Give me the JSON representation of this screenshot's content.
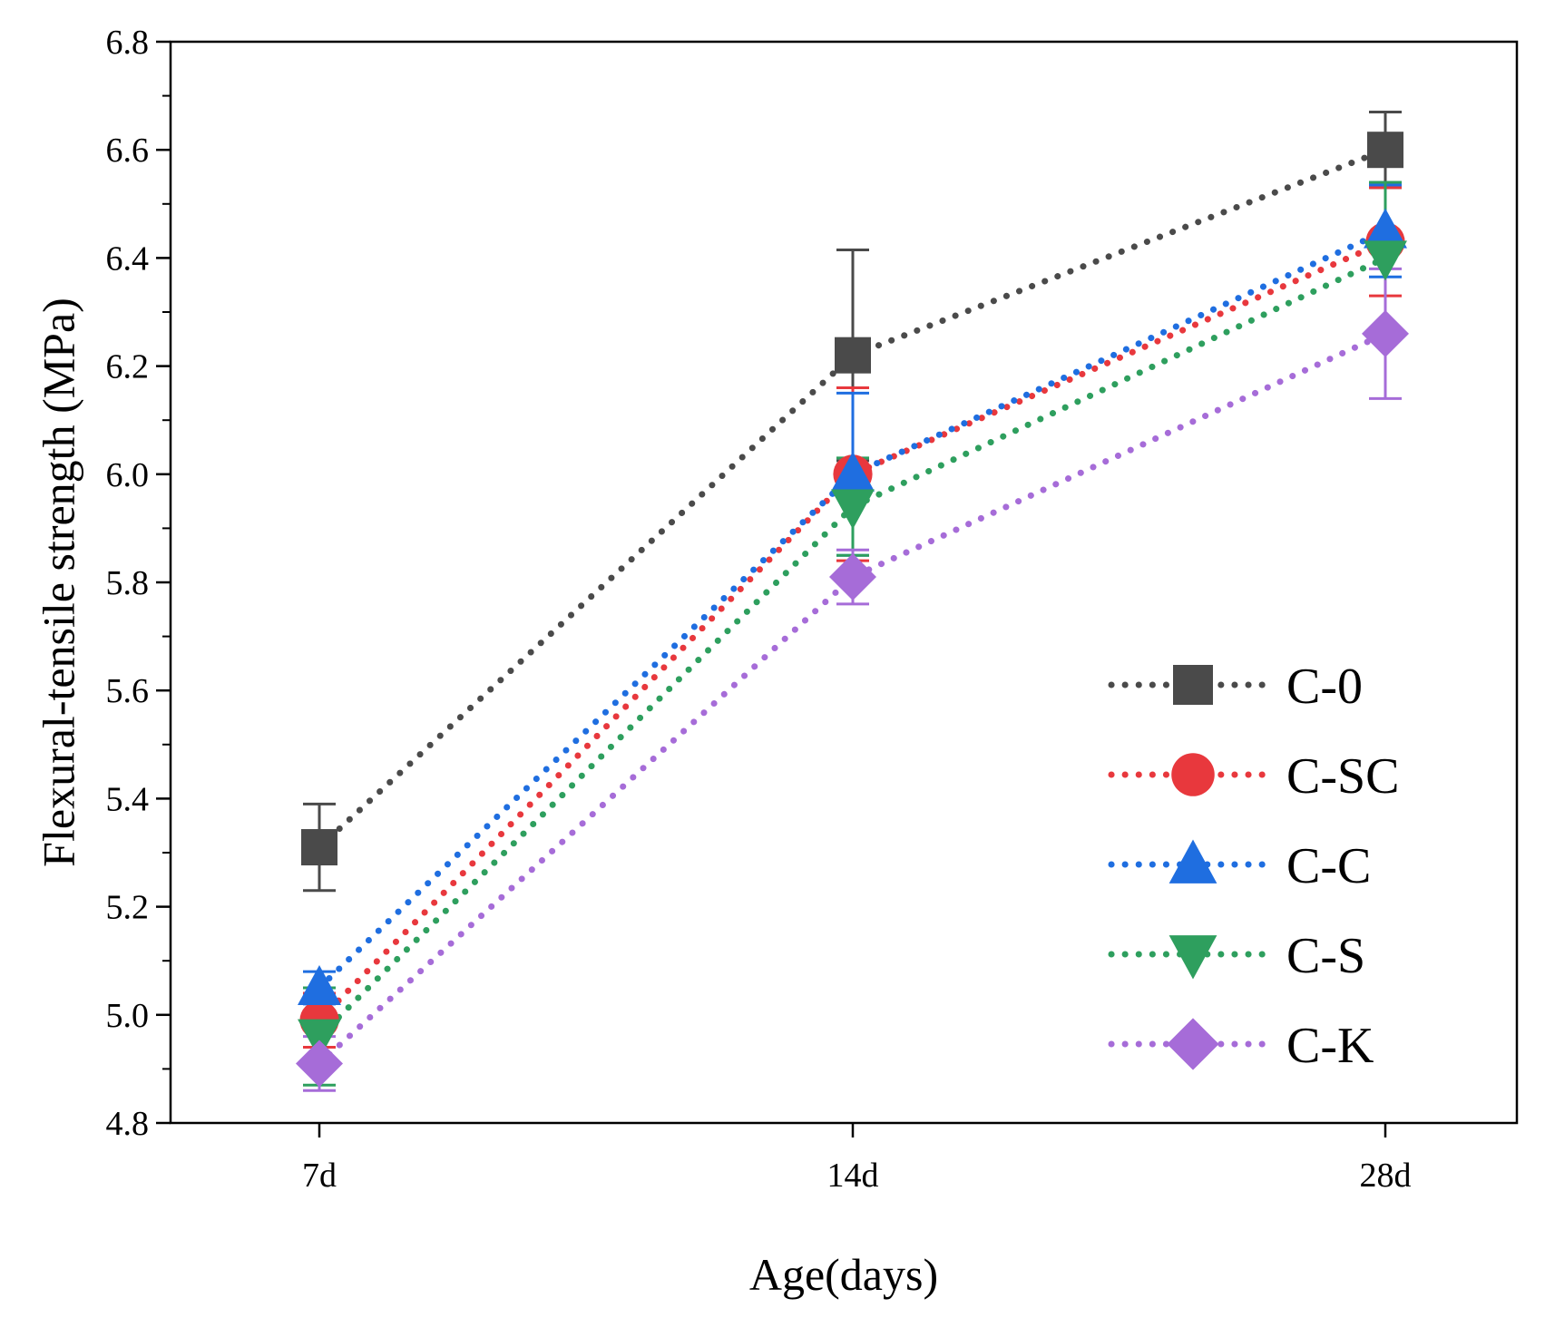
{
  "chart_data": {
    "type": "line",
    "title": "",
    "xlabel": "Age(days)",
    "ylabel": "Flexural-tensile strength (MPa)",
    "categories": [
      "7d",
      "14d",
      "28d"
    ],
    "ylim": [
      4.8,
      6.8
    ],
    "yticks": [
      "4.8",
      "5.0",
      "5.2",
      "5.4",
      "5.6",
      "5.8",
      "6.0",
      "6.2",
      "6.4",
      "6.6",
      "6.8"
    ],
    "grid": false,
    "legend_position": "bottom-right",
    "line_style": "dotted",
    "series": [
      {
        "name": "C-0",
        "marker": "square",
        "color": "#4a4a4a",
        "values": [
          5.31,
          6.22,
          6.6
        ],
        "error": [
          0.08,
          0.195,
          0.07
        ]
      },
      {
        "name": "C-SC",
        "marker": "circle",
        "color": "#e8383d",
        "values": [
          4.99,
          6.0,
          6.43
        ],
        "error": [
          0.05,
          0.16,
          0.1
        ]
      },
      {
        "name": "C-C",
        "marker": "triangle-up",
        "color": "#1f6ee0",
        "values": [
          5.05,
          6.0,
          6.45
        ],
        "error": [
          0.03,
          0.15,
          0.085
        ]
      },
      {
        "name": "C-S",
        "marker": "triangle-down",
        "color": "#2e9f5e",
        "values": [
          4.96,
          5.94,
          6.4
        ],
        "error": [
          0.09,
          0.09,
          0.14
        ]
      },
      {
        "name": "C-K",
        "marker": "diamond",
        "color": "#a66cd8",
        "values": [
          4.91,
          5.81,
          6.26
        ],
        "error": [
          0.05,
          0.05,
          0.12
        ]
      }
    ]
  }
}
